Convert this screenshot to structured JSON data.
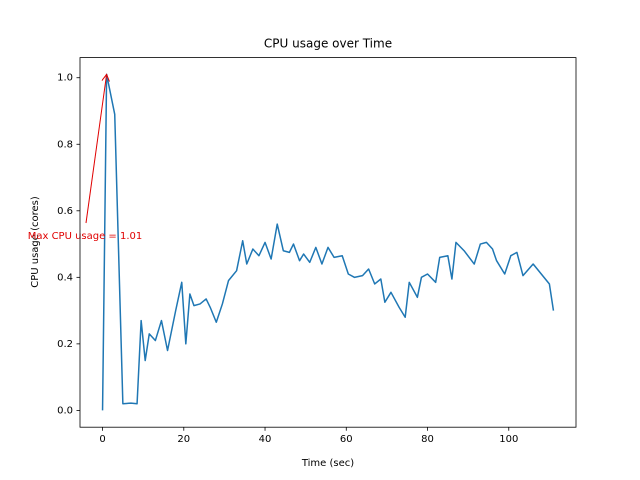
{
  "chart_data": {
    "type": "line",
    "title": "CPU usage over Time",
    "xlabel": "Time (sec)",
    "ylabel": "CPU usage (cores)",
    "annotation": "Max CPU usage = 1.01",
    "annotation_color": "#e00000",
    "annotation_index": 1,
    "color": "#1f77b4",
    "x": [
      0,
      1,
      3,
      5,
      7,
      8.5,
      9.5,
      10.5,
      11.5,
      13,
      14.5,
      16,
      18,
      19.5,
      20.5,
      21.5,
      22.5,
      24,
      25.5,
      26.5,
      28,
      29.5,
      31,
      33,
      34.5,
      35.5,
      37,
      38.5,
      40,
      41.5,
      43,
      44.5,
      46,
      47,
      48.5,
      49.5,
      51,
      52.5,
      54,
      55.5,
      57,
      59,
      60.5,
      62,
      64,
      65.5,
      67,
      68.5,
      69.5,
      71,
      73,
      74.5,
      75.5,
      77.5,
      78.5,
      80,
      82,
      83,
      85,
      86,
      87,
      89,
      91.5,
      93,
      94.5,
      96,
      97,
      99,
      100.5,
      102,
      103.5,
      106,
      110,
      111
    ],
    "values": [
      0.0,
      1.01,
      0.89,
      0.02,
      0.022,
      0.02,
      0.27,
      0.15,
      0.23,
      0.21,
      0.27,
      0.18,
      0.3,
      0.385,
      0.2,
      0.35,
      0.315,
      0.32,
      0.335,
      0.31,
      0.265,
      0.32,
      0.39,
      0.42,
      0.51,
      0.44,
      0.485,
      0.465,
      0.505,
      0.455,
      0.56,
      0.48,
      0.475,
      0.5,
      0.45,
      0.47,
      0.445,
      0.49,
      0.44,
      0.49,
      0.46,
      0.465,
      0.41,
      0.4,
      0.405,
      0.425,
      0.38,
      0.395,
      0.325,
      0.355,
      0.31,
      0.28,
      0.385,
      0.34,
      0.4,
      0.41,
      0.385,
      0.46,
      0.465,
      0.395,
      0.505,
      0.48,
      0.44,
      0.5,
      0.505,
      0.485,
      0.45,
      0.41,
      0.465,
      0.475,
      0.405,
      0.44,
      0.38,
      0.3
    ],
    "xlim": [
      -5.55,
      116.55
    ],
    "ylim": [
      -0.0505,
      1.0605
    ],
    "xticks": [
      0,
      20,
      40,
      60,
      80,
      100
    ],
    "yticks": [
      {
        "value": 0,
        "label": "0.0"
      },
      0.2,
      0.4,
      0.6,
      0.8,
      {
        "value": 1,
        "label": "1.0"
      }
    ],
    "grid": false
  }
}
